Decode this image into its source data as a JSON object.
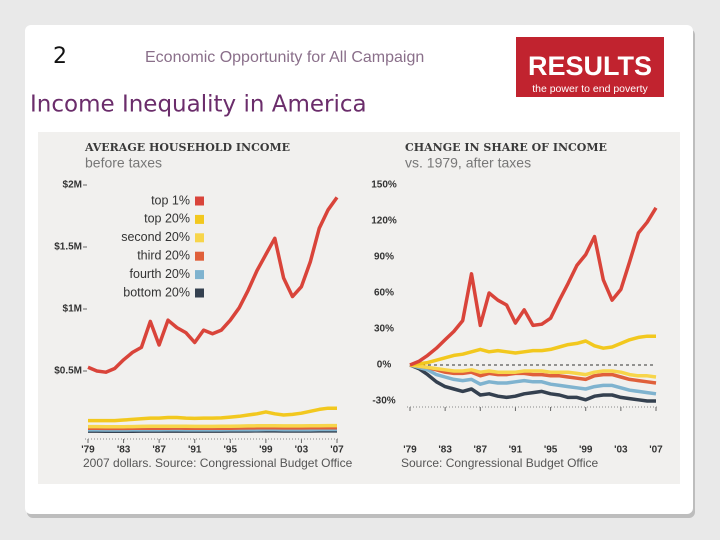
{
  "slide": {
    "number": "2",
    "header": "Economic Opportunity for All Campaign",
    "logo": "RESULTS",
    "logo_tagline": "the power to end poverty",
    "title": "Income Inequality in America"
  },
  "chart_data": [
    {
      "type": "line",
      "title": "AVERAGE HOUSEHOLD INCOME",
      "subtitle": "before taxes",
      "note": "2007 dollars. Source: Congressional Budget Office",
      "x": [
        1979,
        1980,
        1981,
        1982,
        1983,
        1984,
        1985,
        1986,
        1987,
        1988,
        1989,
        1990,
        1991,
        1992,
        1993,
        1994,
        1995,
        1996,
        1997,
        1998,
        1999,
        2000,
        2001,
        2002,
        2003,
        2004,
        2005,
        2006,
        2007
      ],
      "xlim": [
        1979,
        2007
      ],
      "xticks": [
        {
          "value": 1979,
          "label": "'79"
        },
        {
          "value": 1983,
          "label": "'83"
        },
        {
          "value": 1987,
          "label": "'87"
        },
        {
          "value": 1991,
          "label": "'91"
        },
        {
          "value": 1995,
          "label": "'95"
        },
        {
          "value": 1999,
          "label": "'99"
        },
        {
          "value": 2003,
          "label": "'03"
        },
        {
          "value": 2007,
          "label": "'07"
        }
      ],
      "ylim": [
        0,
        2000000
      ],
      "yticks": [
        {
          "value": 500000,
          "label": "$0.5M"
        },
        {
          "value": 1000000,
          "label": "$1M"
        },
        {
          "value": 1500000,
          "label": "$1.5M"
        },
        {
          "value": 2000000,
          "label": "$2M"
        }
      ],
      "legend": "upper left",
      "series": [
        {
          "name": "top 1%",
          "color": "#d9443a",
          "values": [
            530000,
            500000,
            490000,
            520000,
            590000,
            650000,
            690000,
            900000,
            710000,
            910000,
            850000,
            810000,
            730000,
            830000,
            800000,
            830000,
            910000,
            1010000,
            1150000,
            1310000,
            1440000,
            1570000,
            1250000,
            1100000,
            1180000,
            1380000,
            1650000,
            1800000,
            1900000
          ]
        },
        {
          "name": "top 20%",
          "color": "#f2c81e",
          "values": [
            100000,
            100000,
            100000,
            100000,
            105000,
            110000,
            115000,
            120000,
            120000,
            125000,
            125000,
            120000,
            118000,
            120000,
            120000,
            122000,
            128000,
            135000,
            145000,
            155000,
            170000,
            155000,
            145000,
            150000,
            160000,
            175000,
            190000,
            200000,
            200000
          ]
        },
        {
          "name": "second 20%",
          "color": "#f7d54a",
          "values": [
            52000,
            52000,
            51000,
            51000,
            51000,
            52000,
            53000,
            54000,
            54000,
            55000,
            55000,
            54000,
            53000,
            53000,
            53000,
            54000,
            55000,
            56000,
            57000,
            58000,
            59000,
            58000,
            57000,
            57000,
            57000,
            58000,
            59000,
            60000,
            60000
          ]
        },
        {
          "name": "third 20%",
          "color": "#e0603a",
          "values": [
            38000,
            38000,
            37000,
            37000,
            37000,
            38000,
            38000,
            39000,
            39000,
            39000,
            40000,
            39000,
            38000,
            38000,
            38000,
            39000,
            39000,
            40000,
            41000,
            42000,
            42000,
            42000,
            41000,
            41000,
            41000,
            42000,
            42000,
            43000,
            43000
          ]
        },
        {
          "name": "fourth 20%",
          "color": "#7fb3cf",
          "values": [
            25000,
            25000,
            24000,
            24000,
            24000,
            25000,
            25000,
            25000,
            25000,
            26000,
            26000,
            25000,
            25000,
            25000,
            25000,
            25000,
            26000,
            26000,
            27000,
            27000,
            28000,
            28000,
            27000,
            27000,
            27000,
            27000,
            28000,
            28000,
            28000
          ]
        },
        {
          "name": "bottom 20%",
          "color": "#34404f",
          "values": [
            15000,
            15000,
            14000,
            14000,
            14000,
            14000,
            15000,
            15000,
            15000,
            15000,
            15000,
            15000,
            15000,
            15000,
            15000,
            15000,
            16000,
            16000,
            16000,
            17000,
            17000,
            17000,
            16000,
            16000,
            16000,
            16000,
            17000,
            17000,
            17000
          ]
        }
      ]
    },
    {
      "type": "line",
      "title": "CHANGE IN SHARE OF INCOME",
      "subtitle": "vs. 1979, after taxes",
      "note": "Source: Congressional Budget Office",
      "x": [
        1979,
        1980,
        1981,
        1982,
        1983,
        1984,
        1985,
        1986,
        1987,
        1988,
        1989,
        1990,
        1991,
        1992,
        1993,
        1994,
        1995,
        1996,
        1997,
        1998,
        1999,
        2000,
        2001,
        2002,
        2003,
        2004,
        2005,
        2006,
        2007
      ],
      "xlim": [
        1979,
        2007
      ],
      "xticks": [
        {
          "value": 1979,
          "label": "'79"
        },
        {
          "value": 1983,
          "label": "'83"
        },
        {
          "value": 1987,
          "label": "'87"
        },
        {
          "value": 1991,
          "label": "'91"
        },
        {
          "value": 1995,
          "label": "'95"
        },
        {
          "value": 1999,
          "label": "'99"
        },
        {
          "value": 2003,
          "label": "'03"
        },
        {
          "value": 2007,
          "label": "'07"
        }
      ],
      "ylim": [
        -30,
        150
      ],
      "yticks": [
        {
          "value": -30,
          "label": "-30%"
        },
        {
          "value": 0,
          "label": "0%"
        },
        {
          "value": 30,
          "label": "30%"
        },
        {
          "value": 60,
          "label": "60%"
        },
        {
          "value": 90,
          "label": "90%"
        },
        {
          "value": 120,
          "label": "120%"
        },
        {
          "value": 150,
          "label": "150%"
        }
      ],
      "reference_line": 0,
      "series": [
        {
          "color": "#d9443a",
          "values": [
            0,
            3,
            8,
            14,
            21,
            28,
            37,
            76,
            33,
            60,
            54,
            50,
            35,
            46,
            33,
            34,
            39,
            54,
            68,
            83,
            92,
            107,
            71,
            54,
            63,
            86,
            110,
            119,
            131
          ]
        },
        {
          "color": "#f2c81e",
          "values": [
            0,
            1,
            2,
            4,
            6,
            8,
            9,
            11,
            13,
            11,
            12,
            11,
            10,
            11,
            12,
            12,
            13,
            15,
            17,
            18,
            20,
            16,
            14,
            15,
            18,
            21,
            23,
            24,
            24
          ]
        },
        {
          "color": "#f7d54a",
          "values": [
            0,
            -1,
            -2,
            -3,
            -4,
            -5,
            -5,
            -4,
            -6,
            -5,
            -6,
            -6,
            -6,
            -5,
            -5,
            -5,
            -6,
            -6,
            -6,
            -7,
            -8,
            -6,
            -5,
            -5,
            -6,
            -8,
            -9,
            -9,
            -10
          ]
        },
        {
          "color": "#e0603a",
          "values": [
            0,
            -1,
            -2,
            -4,
            -6,
            -7,
            -7,
            -6,
            -9,
            -7,
            -8,
            -8,
            -7,
            -7,
            -8,
            -8,
            -9,
            -9,
            -10,
            -11,
            -12,
            -9,
            -8,
            -8,
            -10,
            -12,
            -13,
            -14,
            -15
          ]
        },
        {
          "color": "#7fb3cf",
          "values": [
            0,
            -2,
            -4,
            -8,
            -10,
            -12,
            -13,
            -12,
            -16,
            -14,
            -15,
            -15,
            -14,
            -13,
            -14,
            -14,
            -16,
            -17,
            -18,
            -19,
            -20,
            -18,
            -17,
            -17,
            -19,
            -21,
            -22,
            -23,
            -24
          ]
        },
        {
          "color": "#34404f",
          "values": [
            0,
            -3,
            -8,
            -14,
            -18,
            -20,
            -22,
            -20,
            -25,
            -24,
            -26,
            -27,
            -26,
            -24,
            -23,
            -22,
            -24,
            -25,
            -27,
            -27,
            -29,
            -26,
            -25,
            -25,
            -27,
            -28,
            -29,
            -30,
            -30
          ]
        }
      ]
    }
  ]
}
